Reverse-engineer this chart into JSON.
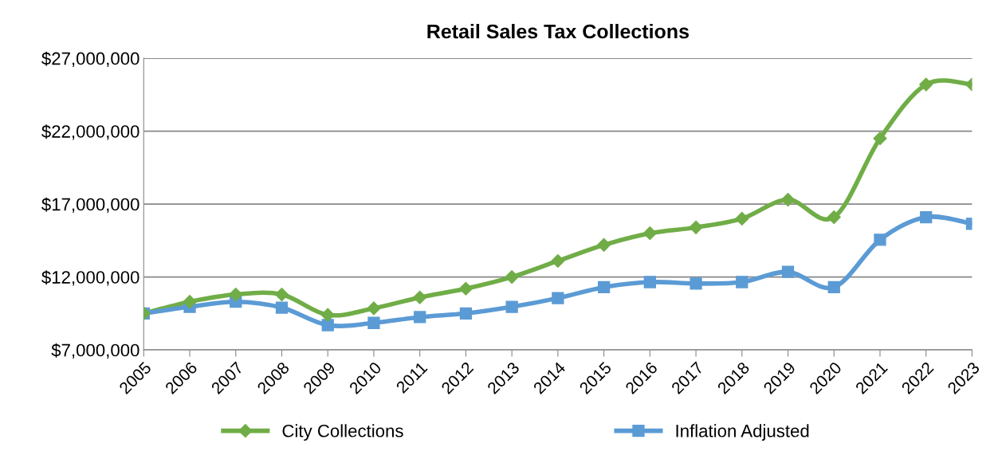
{
  "chart_data": {
    "type": "line",
    "title": "Retail Sales Tax Collections",
    "categories": [
      "2005",
      "2006",
      "2007",
      "2008",
      "2009",
      "2010",
      "2011",
      "2012",
      "2013",
      "2014",
      "2015",
      "2016",
      "2017",
      "2018",
      "2019",
      "2020",
      "2021",
      "2022",
      "2023"
    ],
    "series": [
      {
        "name": "City Collections",
        "color": "#70ad47",
        "marker": "diamond",
        "values": [
          9500000,
          10300000,
          10800000,
          10800000,
          9400000,
          9850000,
          10600000,
          11200000,
          12000000,
          13100000,
          14200000,
          15000000,
          15400000,
          16000000,
          17300000,
          16100000,
          21500000,
          25200000,
          25200000
        ]
      },
      {
        "name": "Inflation Adjusted",
        "color": "#5b9bd5",
        "marker": "square",
        "values": [
          9500000,
          9950000,
          10300000,
          9900000,
          8700000,
          8850000,
          9250000,
          9500000,
          9950000,
          10550000,
          11300000,
          11650000,
          11550000,
          11650000,
          12350000,
          11300000,
          14550000,
          16100000,
          15650000
        ]
      }
    ],
    "ylim": [
      7000000,
      27000000
    ],
    "yticks": [
      {
        "value": 7000000,
        "label": "$7,000,000"
      },
      {
        "value": 12000000,
        "label": "$12,000,000"
      },
      {
        "value": 17000000,
        "label": "$17,000,000"
      },
      {
        "value": 22000000,
        "label": "$22,000,000"
      },
      {
        "value": 27000000,
        "label": "$27,000,000"
      }
    ],
    "grid": "y",
    "legend": "bottom",
    "line_style": "solid"
  }
}
